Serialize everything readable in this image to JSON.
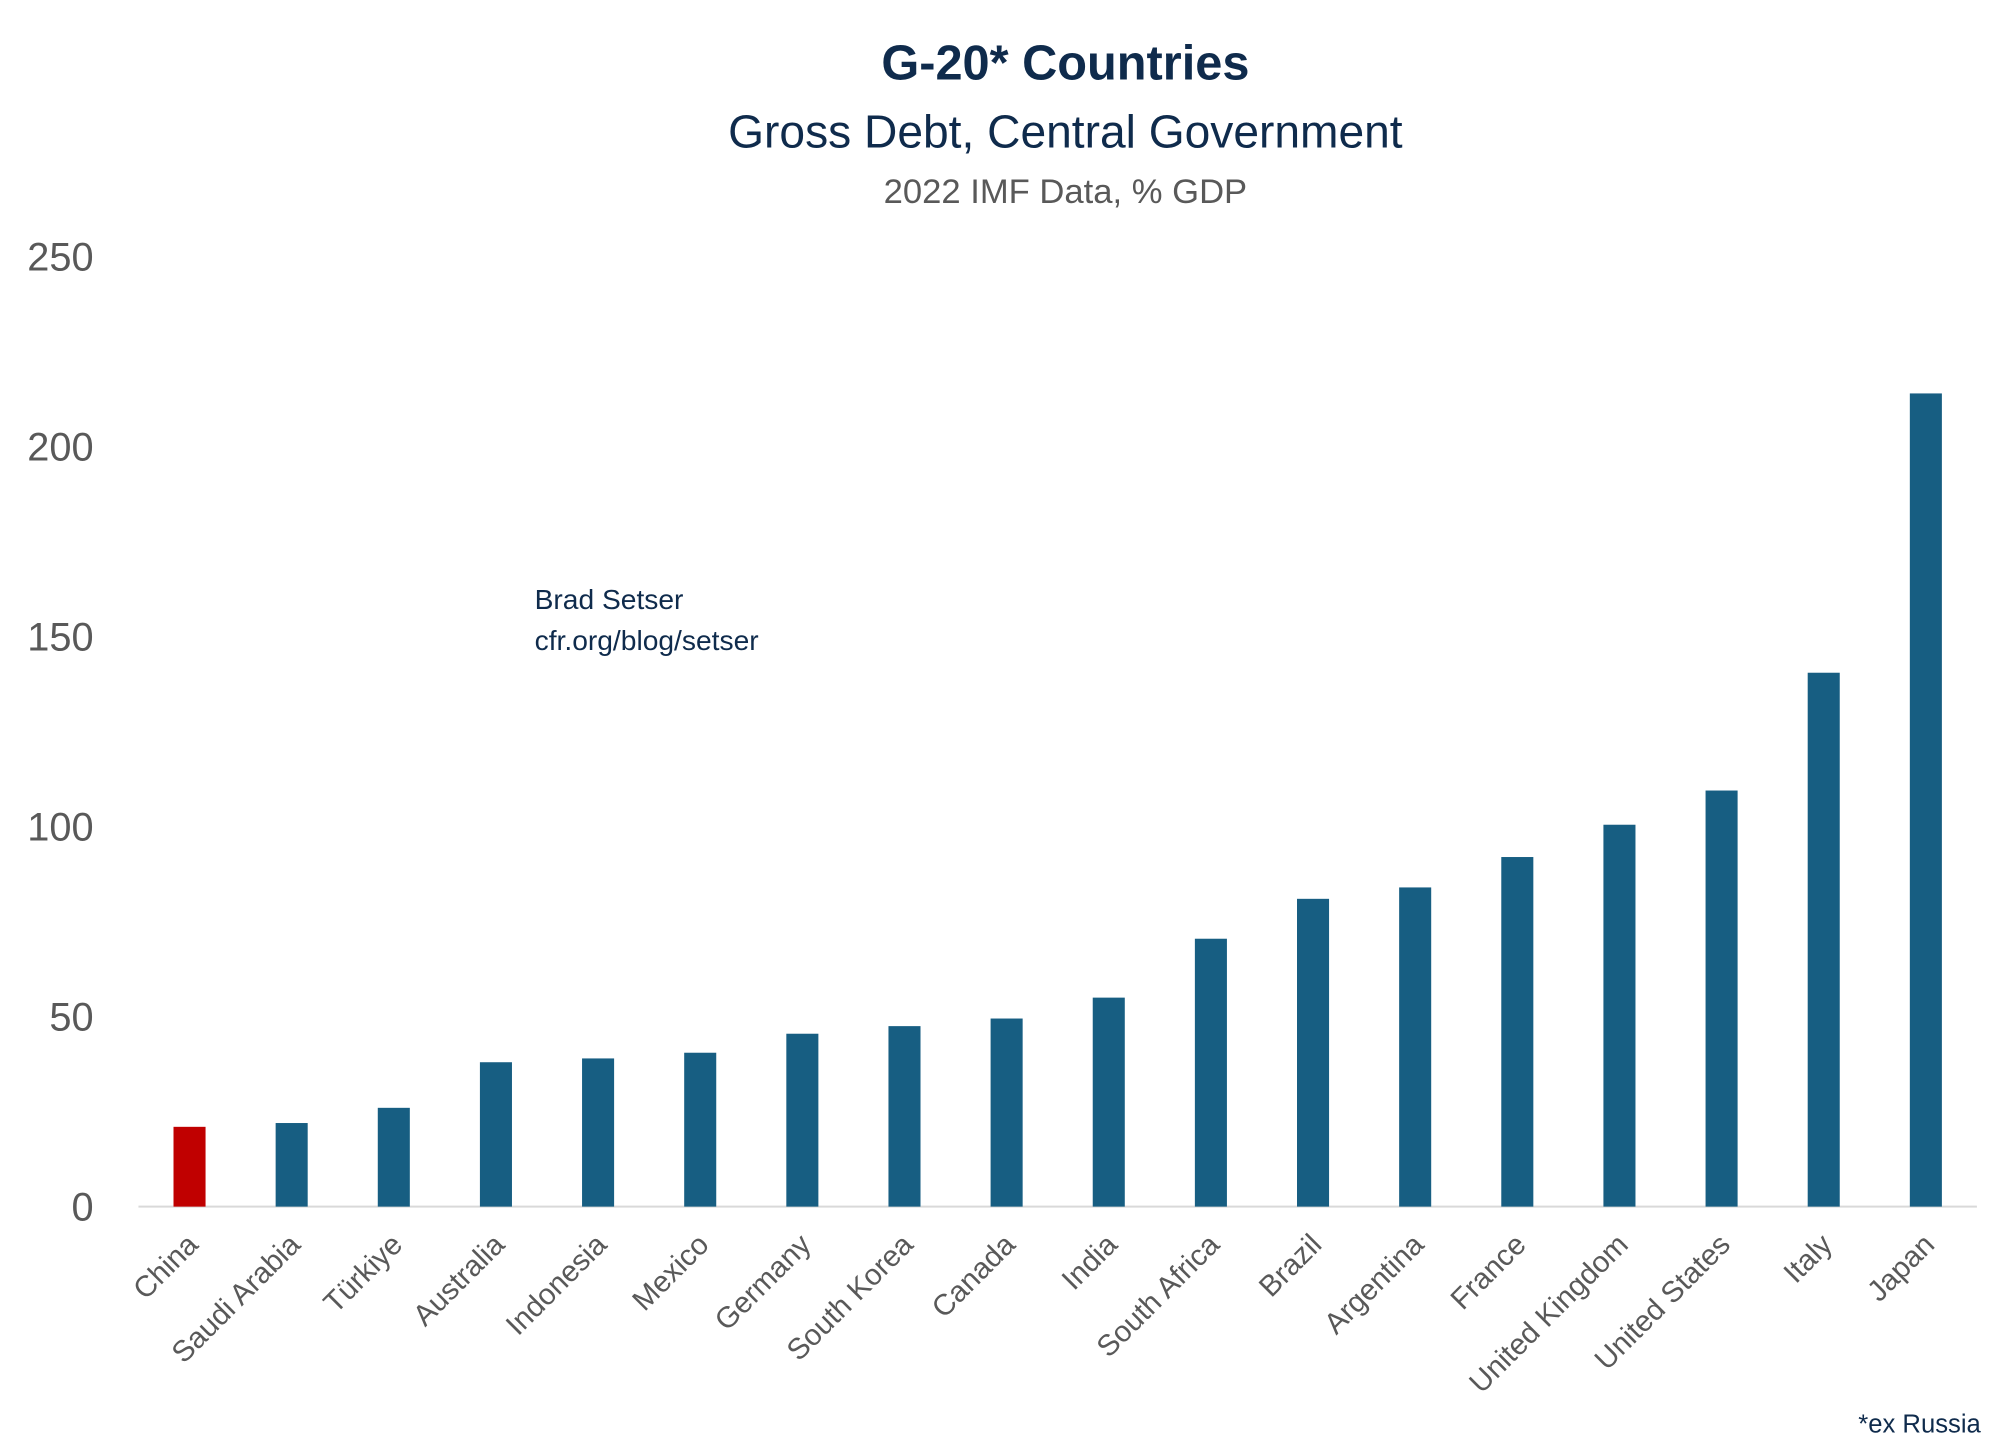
{
  "chart_data": {
    "type": "bar",
    "title": "G-20* Countries",
    "subtitle": "Gross Debt, Central Government",
    "subtitle2": "2022 IMF Data, % GDP",
    "annotation_lines": [
      "Brad Setser",
      "cfr.org/blog/setser"
    ],
    "footnote": "*ex Russia",
    "categories": [
      "China",
      "Saudi Arabia",
      "Türkiye",
      "Australia",
      "Indonesia",
      "Mexico",
      "Germany",
      "South Korea",
      "Canada",
      "India",
      "South Africa",
      "Brazil",
      "Argentina",
      "France",
      "United Kingdom",
      "United States",
      "Italy",
      "Japan"
    ],
    "values": [
      21,
      22,
      26,
      38,
      39,
      40.5,
      45.5,
      47.5,
      49.5,
      55,
      70.5,
      81,
      84,
      92,
      100.5,
      109.5,
      140.5,
      214
    ],
    "highlight_category": "China",
    "ylim": [
      0,
      250
    ],
    "yticks": [
      0,
      50,
      100,
      150,
      200,
      250
    ],
    "grid": false,
    "legend": "none",
    "colors": {
      "bar": "#175e82",
      "highlight": "#c00000",
      "title": "#0f2b4c",
      "axis_text": "#595959",
      "baseline": "#d9d9d9"
    }
  }
}
